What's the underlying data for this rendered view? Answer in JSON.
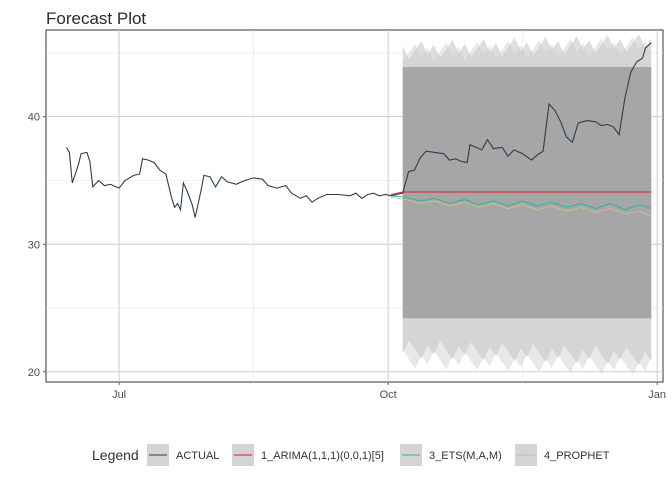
{
  "chart_data": {
    "type": "line",
    "title": "Forecast Plot",
    "xlabel": "",
    "ylabel": "",
    "x_axis": {
      "type": "date",
      "ticks": [
        {
          "label": "Jul",
          "value": "2018-07-01"
        },
        {
          "label": "Oct",
          "value": "2018-10-01"
        },
        {
          "label": "Jan",
          "value": "2019-01-01"
        }
      ],
      "range": [
        "2018-06-06",
        "2019-01-03"
      ]
    },
    "y_axis": {
      "ticks": [
        20,
        30,
        40
      ],
      "range": [
        19.2,
        46.8
      ]
    },
    "grid": true,
    "legend": {
      "title": "Legend",
      "position": "bottom",
      "entries": [
        {
          "label": "ACTUAL",
          "color": "#2c3e50"
        },
        {
          "label": "1_ARIMA(1,1,1)(0,0,1)[5]",
          "color": "#e31a1c"
        },
        {
          "label": "3_ETS(M,A,M)",
          "color": "#18bc9c"
        },
        {
          "label": "4_PROPHET",
          "color": "#ccbe93"
        }
      ]
    },
    "series": [
      {
        "name": "ACTUAL",
        "color": "#2c3e50",
        "points": [
          [
            "2018-06-13",
            37.6
          ],
          [
            "2018-06-14",
            37.2
          ],
          [
            "2018-06-15",
            34.8
          ],
          [
            "2018-06-17",
            36.2
          ],
          [
            "2018-06-18",
            37.1
          ],
          [
            "2018-06-20",
            37.2
          ],
          [
            "2018-06-21",
            36.5
          ],
          [
            "2018-06-22",
            34.5
          ],
          [
            "2018-06-24",
            35.0
          ],
          [
            "2018-06-26",
            34.6
          ],
          [
            "2018-06-28",
            34.7
          ],
          [
            "2018-07-01",
            34.4
          ],
          [
            "2018-07-03",
            35.0
          ],
          [
            "2018-07-06",
            35.4
          ],
          [
            "2018-07-08",
            35.5
          ],
          [
            "2018-07-09",
            36.7
          ],
          [
            "2018-07-11",
            36.6
          ],
          [
            "2018-07-13",
            36.4
          ],
          [
            "2018-07-15",
            35.8
          ],
          [
            "2018-07-17",
            35.5
          ],
          [
            "2018-07-19",
            33.6
          ],
          [
            "2018-07-20",
            32.9
          ],
          [
            "2018-07-21",
            33.2
          ],
          [
            "2018-07-22",
            32.7
          ],
          [
            "2018-07-23",
            34.8
          ],
          [
            "2018-07-24",
            34.3
          ],
          [
            "2018-07-26",
            33.1
          ],
          [
            "2018-07-27",
            32.1
          ],
          [
            "2018-07-29",
            34.2
          ],
          [
            "2018-07-30",
            35.4
          ],
          [
            "2018-08-01",
            35.3
          ],
          [
            "2018-08-03",
            34.5
          ],
          [
            "2018-08-05",
            35.3
          ],
          [
            "2018-08-07",
            34.9
          ],
          [
            "2018-08-10",
            34.7
          ],
          [
            "2018-08-13",
            35.0
          ],
          [
            "2018-08-16",
            35.2
          ],
          [
            "2018-08-19",
            35.1
          ],
          [
            "2018-08-21",
            34.6
          ],
          [
            "2018-08-24",
            34.4
          ],
          [
            "2018-08-27",
            34.6
          ],
          [
            "2018-08-29",
            34.0
          ],
          [
            "2018-09-01",
            33.6
          ],
          [
            "2018-09-03",
            33.8
          ],
          [
            "2018-09-05",
            33.3
          ],
          [
            "2018-09-07",
            33.6
          ],
          [
            "2018-09-10",
            33.9
          ],
          [
            "2018-09-14",
            33.9
          ],
          [
            "2018-09-18",
            33.8
          ],
          [
            "2018-09-20",
            34.0
          ],
          [
            "2018-09-22",
            33.6
          ],
          [
            "2018-09-24",
            33.9
          ],
          [
            "2018-09-26",
            34.0
          ],
          [
            "2018-09-28",
            33.8
          ],
          [
            "2018-09-30",
            33.9
          ],
          [
            "2018-10-02",
            33.8
          ],
          [
            "2018-10-04",
            33.9
          ],
          [
            "2018-10-06",
            34.0
          ],
          [
            "2018-10-08",
            35.7
          ],
          [
            "2018-10-10",
            35.8
          ],
          [
            "2018-10-12",
            36.8
          ],
          [
            "2018-10-14",
            37.3
          ],
          [
            "2018-10-17",
            37.2
          ],
          [
            "2018-10-20",
            37.1
          ],
          [
            "2018-10-22",
            36.6
          ],
          [
            "2018-10-24",
            36.7
          ],
          [
            "2018-10-26",
            36.5
          ],
          [
            "2018-10-28",
            36.4
          ],
          [
            "2018-10-29",
            37.8
          ],
          [
            "2018-10-31",
            37.6
          ],
          [
            "2018-11-02",
            37.4
          ],
          [
            "2018-11-04",
            38.2
          ],
          [
            "2018-11-06",
            37.5
          ],
          [
            "2018-11-09",
            37.6
          ],
          [
            "2018-11-11",
            36.9
          ],
          [
            "2018-11-13",
            37.4
          ],
          [
            "2018-11-16",
            37.1
          ],
          [
            "2018-11-19",
            36.6
          ],
          [
            "2018-11-21",
            37.0
          ],
          [
            "2018-11-23",
            37.3
          ],
          [
            "2018-11-25",
            41.0
          ],
          [
            "2018-11-27",
            40.5
          ],
          [
            "2018-11-29",
            39.6
          ],
          [
            "2018-12-01",
            38.4
          ],
          [
            "2018-12-03",
            38.0
          ],
          [
            "2018-12-05",
            39.5
          ],
          [
            "2018-12-08",
            39.7
          ],
          [
            "2018-12-11",
            39.6
          ],
          [
            "2018-12-13",
            39.3
          ],
          [
            "2018-12-15",
            39.4
          ],
          [
            "2018-12-17",
            39.2
          ],
          [
            "2018-12-19",
            38.6
          ],
          [
            "2018-12-21",
            41.5
          ],
          [
            "2018-12-23",
            43.5
          ],
          [
            "2018-12-25",
            44.3
          ],
          [
            "2018-12-27",
            44.6
          ],
          [
            "2018-12-28",
            45.4
          ],
          [
            "2018-12-30",
            45.8
          ]
        ]
      },
      {
        "name": "1_ARIMA(1,1,1)(0,0,1)[5]",
        "color": "#e31a1c",
        "points": [
          [
            "2018-10-02",
            33.9
          ],
          [
            "2018-10-06",
            34.1
          ],
          [
            "2018-12-30",
            34.1
          ]
        ]
      },
      {
        "name": "3_ETS(M,A,M)",
        "color": "#18bc9c",
        "points": [
          [
            "2018-10-02",
            33.8
          ],
          [
            "2018-10-07",
            33.7
          ],
          [
            "2018-10-12",
            33.4
          ],
          [
            "2018-10-17",
            33.6
          ],
          [
            "2018-10-22",
            33.2
          ],
          [
            "2018-10-27",
            33.5
          ],
          [
            "2018-11-01",
            33.1
          ],
          [
            "2018-11-06",
            33.4
          ],
          [
            "2018-11-11",
            33.0
          ],
          [
            "2018-11-16",
            33.4
          ],
          [
            "2018-11-21",
            33.0
          ],
          [
            "2018-11-26",
            33.3
          ],
          [
            "2018-12-01",
            32.9
          ],
          [
            "2018-12-06",
            33.2
          ],
          [
            "2018-12-11",
            32.8
          ],
          [
            "2018-12-16",
            33.2
          ],
          [
            "2018-12-21",
            32.7
          ],
          [
            "2018-12-26",
            33.1
          ],
          [
            "2018-12-30",
            32.8
          ]
        ]
      },
      {
        "name": "4_PROPHET",
        "color": "#ccbe93",
        "points": [
          [
            "2018-10-02",
            33.7
          ],
          [
            "2018-10-07",
            33.5
          ],
          [
            "2018-10-12",
            33.2
          ],
          [
            "2018-10-17",
            33.4
          ],
          [
            "2018-10-22",
            33.0
          ],
          [
            "2018-10-27",
            33.3
          ],
          [
            "2018-11-01",
            32.9
          ],
          [
            "2018-11-06",
            33.2
          ],
          [
            "2018-11-11",
            32.8
          ],
          [
            "2018-11-16",
            33.1
          ],
          [
            "2018-11-21",
            32.7
          ],
          [
            "2018-11-26",
            33.0
          ],
          [
            "2018-12-01",
            32.6
          ],
          [
            "2018-12-06",
            32.9
          ],
          [
            "2018-12-11",
            32.5
          ],
          [
            "2018-12-16",
            32.8
          ],
          [
            "2018-12-21",
            32.4
          ],
          [
            "2018-12-26",
            32.6
          ],
          [
            "2018-12-30",
            32.2
          ]
        ]
      }
    ],
    "confidence_bands": [
      {
        "name": "1_ARIMA(1,1,1)(0,0,1)[5]",
        "color": "#808080",
        "opacity": 0.55,
        "x": [
          "2018-10-06",
          "2018-12-30"
        ],
        "lo": 24.2,
        "hi": 43.9
      },
      {
        "name": "3_ETS(M,A,M)",
        "color": "#c8c8c8",
        "opacity": 0.6,
        "x": [
          "2018-10-06",
          "2018-12-30"
        ],
        "lo": 21.8,
        "hi": 45.2
      },
      {
        "name": "4_PROPHET",
        "color": "#d9d9d9",
        "opacity": 0.6,
        "x": [
          "2018-10-06",
          "2018-12-30"
        ],
        "lo": 21.0,
        "hi": 45.0
      }
    ]
  }
}
